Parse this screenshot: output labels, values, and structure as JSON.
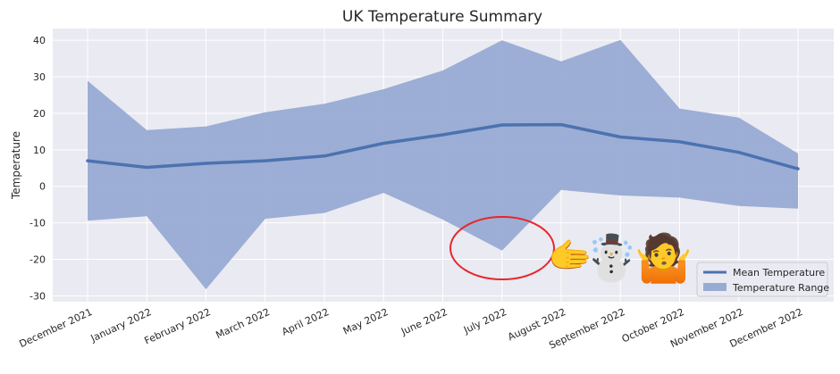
{
  "chart_data": {
    "type": "area",
    "title": "UK Temperature Summary",
    "xlabel": "",
    "ylabel": "Temperature",
    "categories": [
      "December 2021",
      "January 2022",
      "February 2022",
      "March 2022",
      "April 2022",
      "May 2022",
      "June 2022",
      "July 2022",
      "August 2022",
      "September 2022",
      "October 2022",
      "November 2022",
      "December 2022"
    ],
    "series": [
      {
        "name": "Mean Temperature",
        "type": "line",
        "values": [
          7.0,
          5.2,
          6.3,
          7.0,
          8.3,
          11.8,
          14.1,
          16.8,
          16.9,
          13.5,
          12.2,
          9.3,
          4.8
        ]
      },
      {
        "name": "Temperature Range",
        "type": "range",
        "lower": [
          -9.4,
          -8.2,
          -28.2,
          -8.9,
          -7.3,
          -1.8,
          -9.1,
          -17.6,
          -1.0,
          -2.5,
          -3.1,
          -5.4,
          -6.1
        ],
        "upper": [
          28.9,
          15.4,
          16.4,
          20.3,
          22.6,
          26.6,
          31.7,
          40.0,
          34.2,
          40.1,
          21.3,
          18.8,
          9.0
        ]
      }
    ],
    "yticks": [
      40,
      30,
      20,
      10,
      0,
      -10,
      -20,
      -30
    ],
    "ylim": [
      -31.6,
      43.2
    ],
    "grid": true,
    "legend_position": "lower-right",
    "colors": {
      "line": "#4c72b0",
      "band": "#98abd3",
      "plot_bg": "#eaeaf2",
      "grid": "#ffffff",
      "annotation_ring": "#e8262b"
    }
  },
  "annotations": {
    "emoji_pointer": "🫱",
    "emoji_snowman": "☃️",
    "emoji_shrug": "🤷"
  }
}
